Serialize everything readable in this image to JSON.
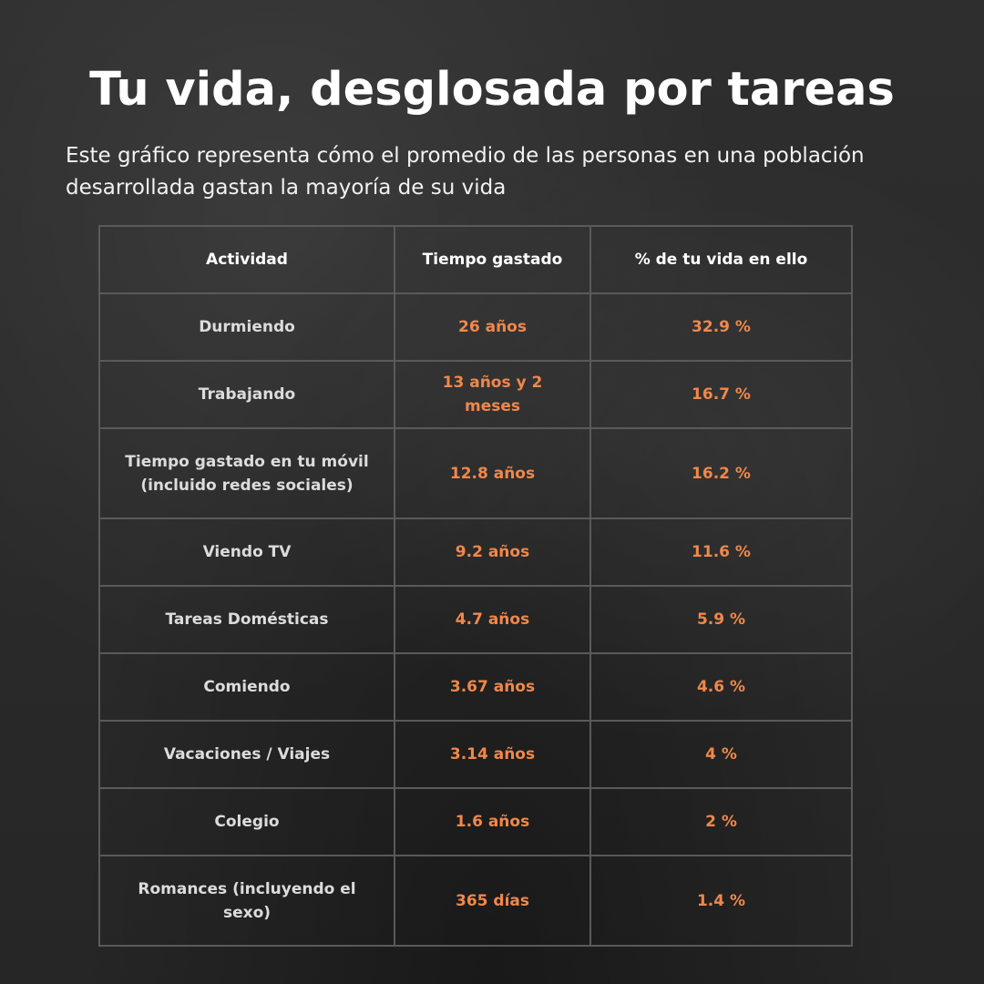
{
  "title": "Tu vida, desglosada por tareas",
  "subtitle": "Este gráfico representa cómo el promedio de las personas en una población desarrollada gastan la mayoría de su vida",
  "colors": {
    "background": "#2b2b2b",
    "title": "#ffffff",
    "activity_text": "#dcdcdc",
    "value_text": "#f0884a",
    "grid_lines": "#5a5a5a"
  },
  "chart_data": {
    "type": "table",
    "columns": [
      "Actividad",
      "Tiempo gastado",
      "% de tu vida en ello"
    ],
    "rows": [
      {
        "activity": "Durmiendo",
        "time": "26 años",
        "percent": "32.9 %"
      },
      {
        "activity": "Trabajando",
        "time": "13 años y 2 meses",
        "percent": "16.7 %"
      },
      {
        "activity": "Tiempo gastado en tu móvil (incluido redes sociales)",
        "time": "12.8 años",
        "percent": "16.2 %"
      },
      {
        "activity": "Viendo TV",
        "time": "9.2 años",
        "percent": "11.6 %"
      },
      {
        "activity": "Tareas Domésticas",
        "time": "4.7 años",
        "percent": "5.9 %"
      },
      {
        "activity": "Comiendo",
        "time": "3.67 años",
        "percent": "4.6 %"
      },
      {
        "activity": "Vacaciones / Viajes",
        "time": "3.14 años",
        "percent": "4 %"
      },
      {
        "activity": "Colegio",
        "time": "1.6 años",
        "percent": "2 %"
      },
      {
        "activity": "Romances (incluyendo el sexo)",
        "time": "365 días",
        "percent": "1.4 %"
      }
    ]
  }
}
